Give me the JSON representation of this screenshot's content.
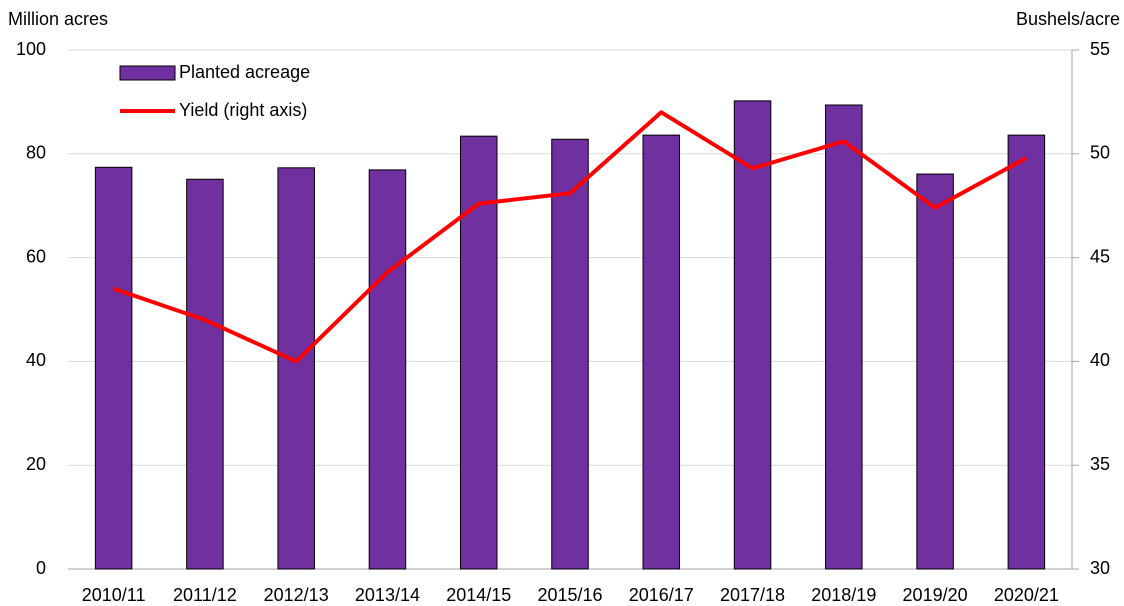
{
  "chart_data": {
    "type": "bar",
    "ylabel": "Million acres",
    "y2label": "Bushels/acre",
    "categories": [
      "2010/11",
      "2011/12",
      "2012/13",
      "2013/14",
      "2014/15",
      "2015/16",
      "2016/17",
      "2017/18",
      "2018/19",
      "2019/20",
      "2020/21"
    ],
    "series": [
      {
        "name": "Planted acreage",
        "type": "bar",
        "color": "#7030a0",
        "values": [
          77.4,
          75.1,
          77.3,
          76.9,
          83.4,
          82.8,
          83.6,
          90.2,
          89.4,
          76.1,
          83.6
        ]
      },
      {
        "name": "Yield (right axis)",
        "type": "line",
        "axis": "y2",
        "color": "#ff0000",
        "values": [
          43.5,
          42.0,
          40.0,
          44.3,
          47.6,
          48.1,
          52.0,
          49.3,
          50.6,
          47.4,
          49.8
        ]
      }
    ],
    "ylim": [
      0,
      100
    ],
    "yticks": [
      0,
      20,
      40,
      60,
      80,
      100
    ],
    "y2lim": [
      30,
      55
    ],
    "y2ticks": [
      30,
      35,
      40,
      45,
      50,
      55
    ],
    "grid": true,
    "legend": "upper left"
  }
}
